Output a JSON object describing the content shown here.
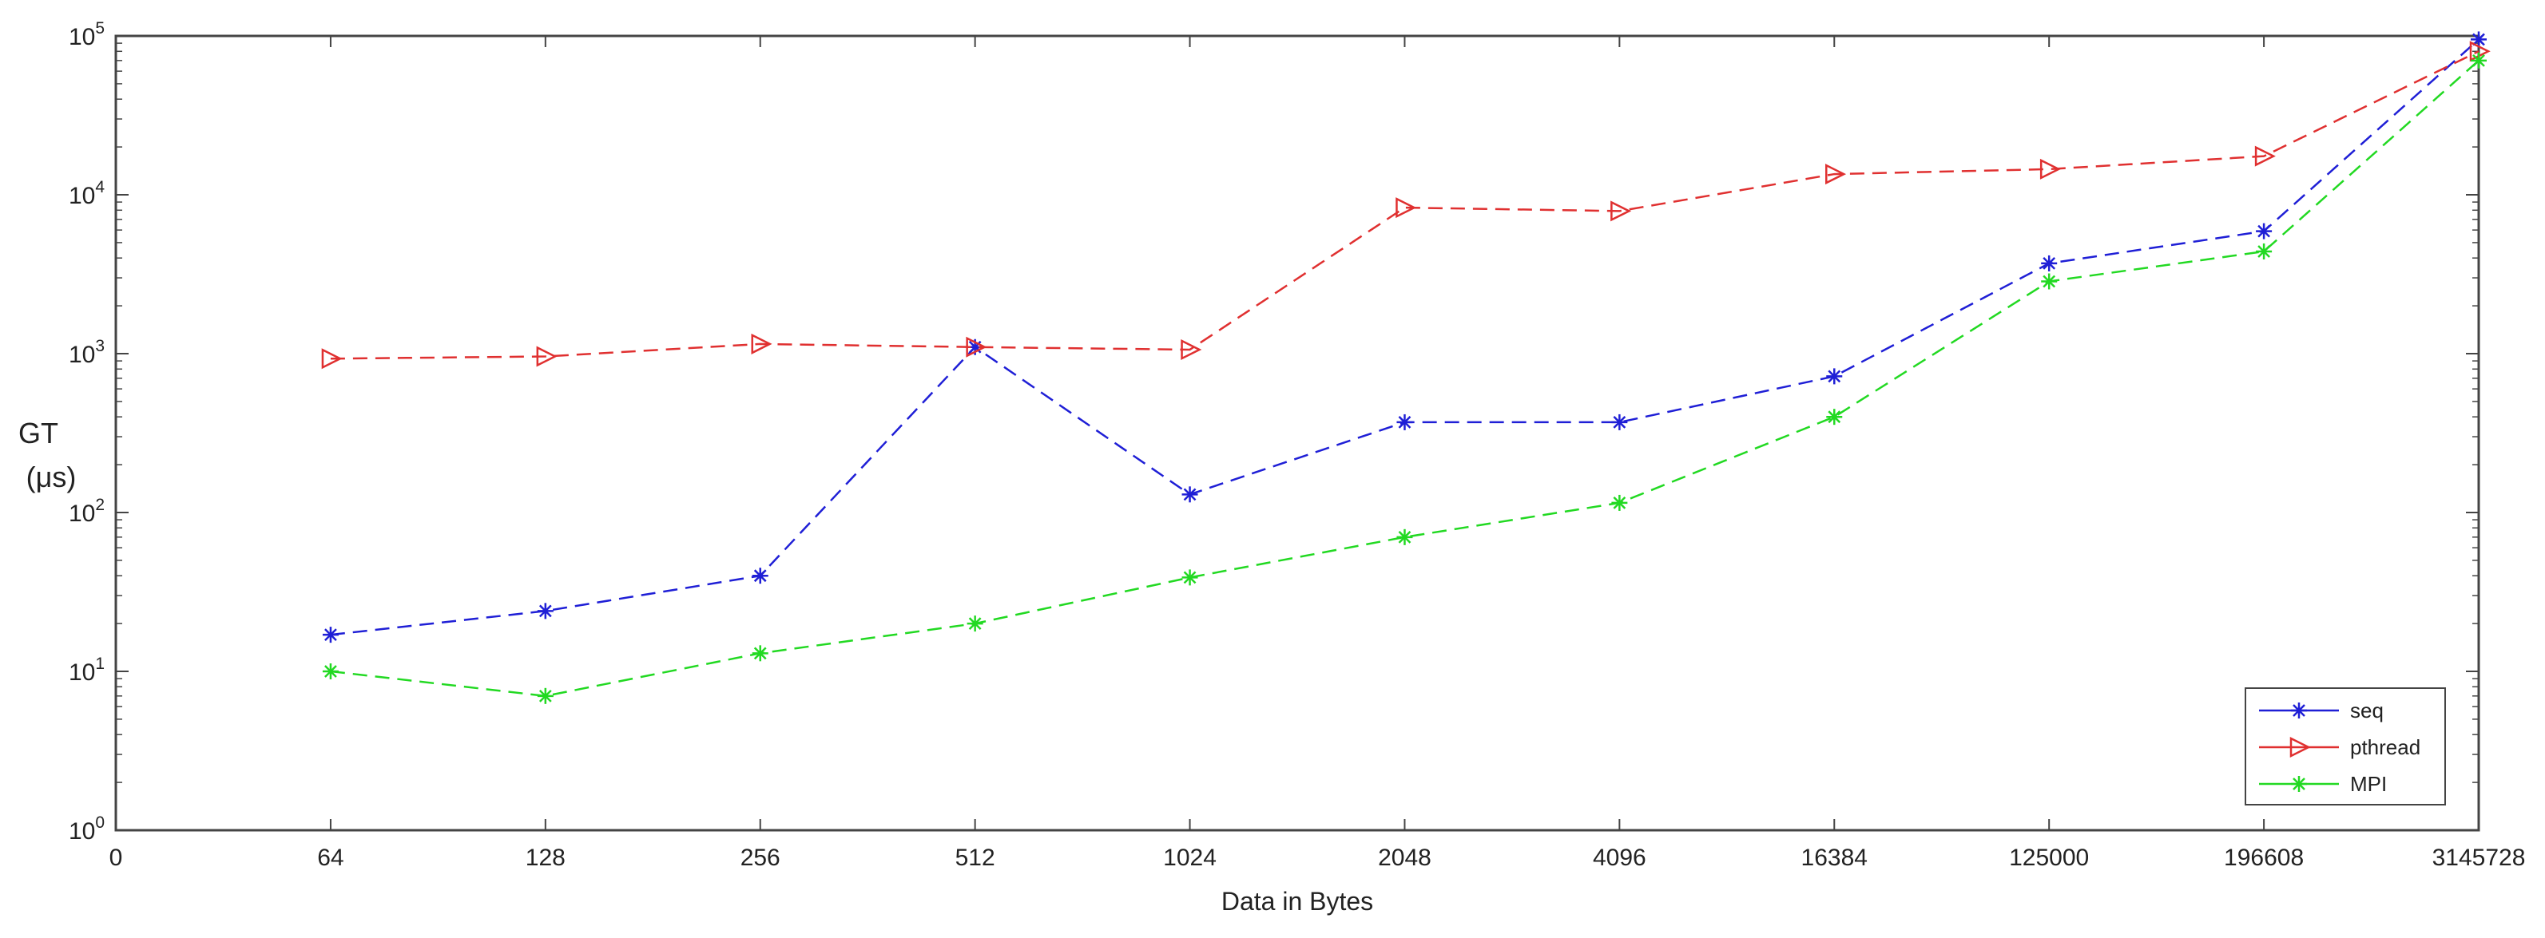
{
  "chart_data": {
    "type": "line",
    "title": "",
    "xlabel": "Data in Bytes",
    "ylabel_lines": [
      "GT",
      "(μs)"
    ],
    "x_scale": "categorical",
    "y_scale": "log",
    "ylim": [
      1,
      100000
    ],
    "grid": false,
    "x_tick_labels": [
      "0",
      "64",
      "128",
      "256",
      "512",
      "1024",
      "2048",
      "4096",
      "16384",
      "125000",
      "196608",
      "3145728"
    ],
    "y_ticks": [
      {
        "base": "10",
        "exp": "0"
      },
      {
        "base": "10",
        "exp": "1"
      },
      {
        "base": "10",
        "exp": "2"
      },
      {
        "base": "10",
        "exp": "3"
      },
      {
        "base": "10",
        "exp": "4"
      },
      {
        "base": "10",
        "exp": "5"
      }
    ],
    "categories": [
      "64",
      "128",
      "256",
      "512",
      "1024",
      "2048",
      "4096",
      "16384",
      "125000",
      "196608",
      "3145728"
    ],
    "legend_position": "bottom-right",
    "series": [
      {
        "name": "seq",
        "color": "#1f1fd6",
        "marker": "asterisk",
        "line_style": "dashed",
        "values": [
          17,
          24,
          40,
          1100,
          130,
          370,
          370,
          720,
          3700,
          5900,
          95000
        ]
      },
      {
        "name": "pthread",
        "color": "#e03030",
        "marker": "triangle-right",
        "line_style": "dashed",
        "values": [
          930,
          960,
          1150,
          1100,
          1060,
          8300,
          7900,
          13500,
          14500,
          17500,
          80000
        ]
      },
      {
        "name": "MPI",
        "color": "#22d922",
        "marker": "asterisk",
        "line_style": "dashed",
        "values": [
          10,
          7,
          13,
          20,
          39,
          70,
          115,
          400,
          2850,
          4400,
          70000
        ]
      }
    ]
  }
}
